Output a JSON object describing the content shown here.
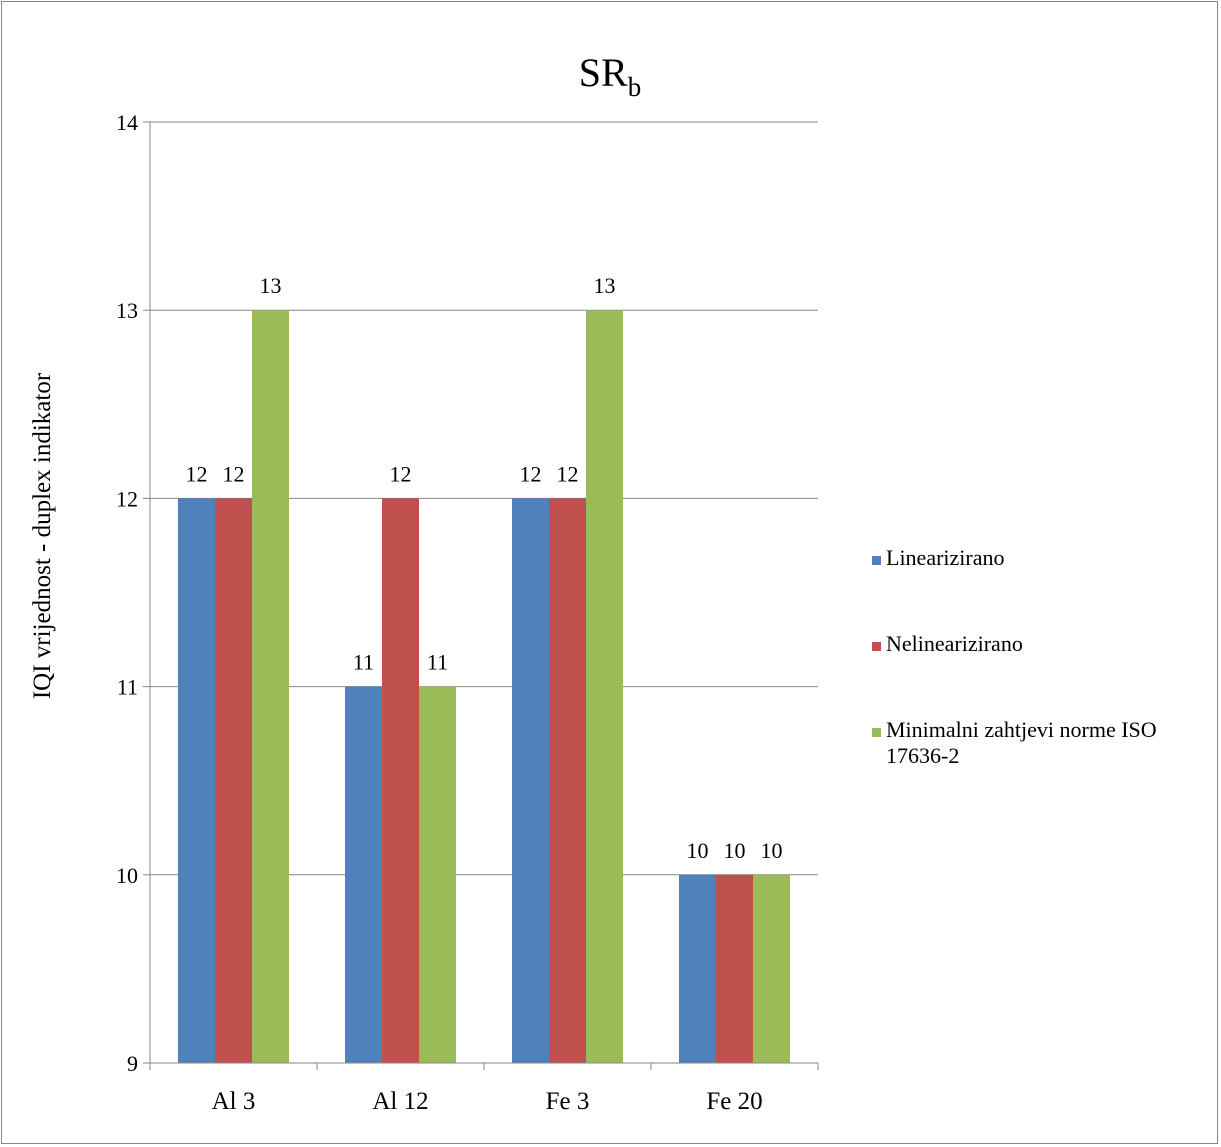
{
  "chart_data": {
    "type": "bar",
    "title": "SR",
    "title_subscript": "b",
    "xlabel": "",
    "ylabel": "IQI vrijednost - duplex indikator",
    "categories": [
      "Al 3",
      "Al 12",
      "Fe 3",
      "Fe 20"
    ],
    "series": [
      {
        "name": "Linearizirano",
        "values": [
          12,
          11,
          12,
          10
        ],
        "color": "#4F81BD"
      },
      {
        "name": "Nelinearizirano",
        "values": [
          12,
          12,
          12,
          10
        ],
        "color": "#C0504D"
      },
      {
        "name": "Minimalni zahtjevi norme ISO 17636-2",
        "values": [
          13,
          11,
          13,
          10
        ],
        "color": "#9BBB59"
      }
    ],
    "ylim": [
      9,
      14
    ],
    "yticks": [
      "9",
      "10",
      "11",
      "12",
      "13",
      "14"
    ],
    "data_labels": true,
    "grid": true,
    "legend_position": "right"
  }
}
